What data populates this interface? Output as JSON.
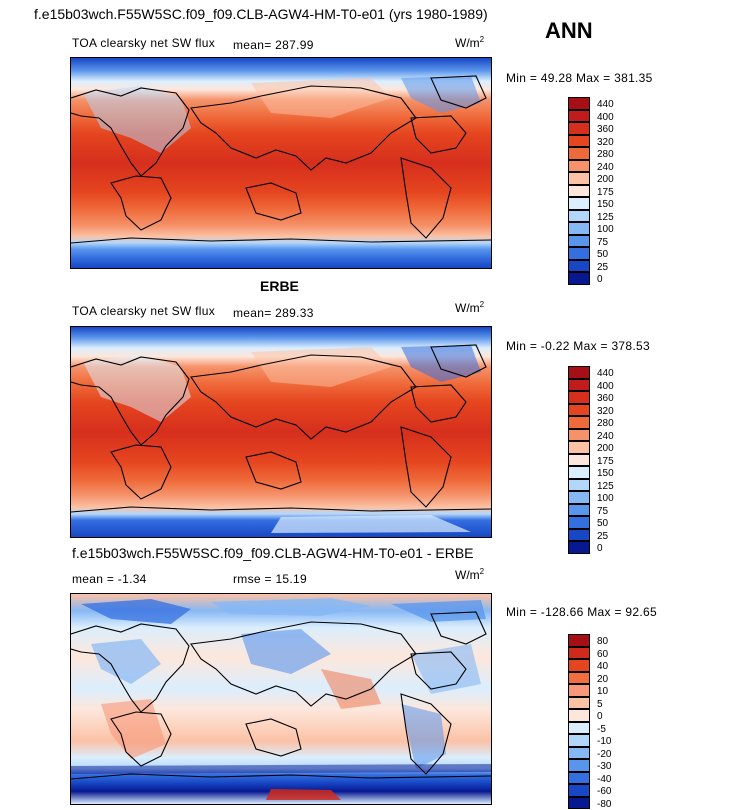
{
  "header": {
    "case_title": "f.e15b03wch.F55W5SC.f09_f09.CLB-AGW4-HM-T0-e01 (yrs 1980-1989)",
    "season": "ANN"
  },
  "panels": [
    {
      "name": "model",
      "heading": "",
      "variable": "TOA clearsky net SW flux",
      "stat1": "mean=  287.99",
      "stat2": "",
      "units_base": "W/m",
      "units_exp": "2",
      "minmax": "Min =   49.28 Max =  381.35",
      "colorbar_labels": [
        "440",
        "400",
        "360",
        "320",
        "280",
        "240",
        "200",
        "175",
        "150",
        "125",
        "100",
        "75",
        "50",
        "25",
        "0"
      ],
      "colorbar_colors": [
        "#a50f15",
        "#c21b1b",
        "#d62f1e",
        "#e5451f",
        "#ef6a3a",
        "#f5926a",
        "#fbc2a6",
        "#fde7dc",
        "#dbeefd",
        "#b3d7fb",
        "#86b8f5",
        "#5a95ec",
        "#346fe0",
        "#1747c4",
        "#081890"
      ]
    },
    {
      "name": "obs",
      "heading": "ERBE",
      "variable": "TOA clearsky net SW flux",
      "stat1": "mean=  289.33",
      "stat2": "",
      "units_base": "W/m",
      "units_exp": "2",
      "minmax": "Min =   -0.22 Max =  378.53",
      "colorbar_labels": [
        "440",
        "400",
        "360",
        "320",
        "280",
        "240",
        "200",
        "175",
        "150",
        "125",
        "100",
        "75",
        "50",
        "25",
        "0"
      ],
      "colorbar_colors": [
        "#a50f15",
        "#c21b1b",
        "#d62f1e",
        "#e5451f",
        "#ef6a3a",
        "#f5926a",
        "#fbc2a6",
        "#fde7dc",
        "#dbeefd",
        "#b3d7fb",
        "#86b8f5",
        "#5a95ec",
        "#346fe0",
        "#1747c4",
        "#081890"
      ]
    },
    {
      "name": "diff",
      "heading": "f.e15b03wch.F55W5SC.f09_f09.CLB-AGW4-HM-T0-e01 - ERBE",
      "variable": "",
      "stat1": "mean =   -1.34",
      "stat2": "rmse =   15.19",
      "units_base": "W/m",
      "units_exp": "2",
      "minmax": "Min = -128.66 Max =   92.65",
      "colorbar_labels": [
        "80",
        "60",
        "40",
        "20",
        "10",
        "5",
        "0",
        "-5",
        "-10",
        "-20",
        "-30",
        "-40",
        "-60",
        "-80"
      ],
      "colorbar_colors": [
        "#a50f15",
        "#cf2a1c",
        "#e5451f",
        "#f26d3f",
        "#f7987a",
        "#fbc2a6",
        "#fde7dc",
        "#dbeefd",
        "#b3d7fb",
        "#86b8f5",
        "#5a95ec",
        "#346fe0",
        "#1747c4",
        "#081890"
      ]
    }
  ]
}
